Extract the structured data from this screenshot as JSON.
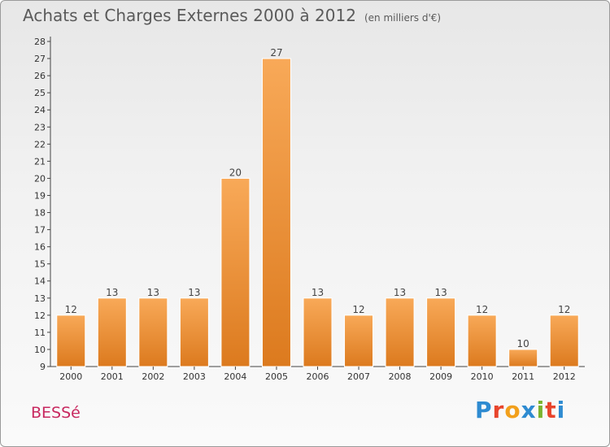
{
  "title": "Achats et Charges Externes 2000 à 2012",
  "subtitle": "(en milliers d'€)",
  "commune": "BESSé",
  "brand": {
    "letters": [
      "P",
      "r",
      "o",
      "x",
      "i",
      "t",
      "i"
    ],
    "colors": [
      "#2e8bd1",
      "#e8452c",
      "#f2a01c",
      "#2e8bd1",
      "#7ab32e",
      "#e8452c",
      "#2e8bd1"
    ]
  },
  "colors": {
    "bar": "#f08a2a",
    "bar_light": "#f5a85a",
    "commune": "#c8285f"
  },
  "chart_data": {
    "type": "bar",
    "categories": [
      "2000",
      "2001",
      "2002",
      "2003",
      "2004",
      "2005",
      "2006",
      "2007",
      "2008",
      "2009",
      "2010",
      "2011",
      "2012"
    ],
    "values": [
      12,
      13,
      13,
      13,
      20,
      27,
      13,
      12,
      13,
      13,
      12,
      10,
      12
    ],
    "ylim": [
      9,
      28
    ],
    "yticks": [
      9,
      10,
      11,
      12,
      13,
      14,
      15,
      16,
      17,
      18,
      19,
      20,
      21,
      22,
      23,
      24,
      25,
      26,
      27,
      28
    ],
    "grid": false,
    "data_labels": true
  }
}
